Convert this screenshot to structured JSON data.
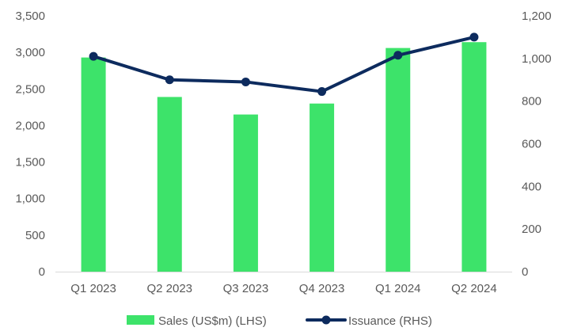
{
  "chart_data": {
    "type": "bar",
    "categories": [
      "Q1 2023",
      "Q2 2023",
      "Q3 2023",
      "Q4 2023",
      "Q1 2024",
      "Q2 2024"
    ],
    "series": [
      {
        "name": "Sales (US$m) (LHS)",
        "type": "bar",
        "axis": "left",
        "color": "#3de36a",
        "values": [
          2930,
          2390,
          2150,
          2300,
          3060,
          3140
        ]
      },
      {
        "name": "Issuance (RHS)",
        "type": "line",
        "axis": "right",
        "color": "#0d2b5e",
        "values": [
          1010,
          900,
          890,
          845,
          1015,
          1100
        ]
      }
    ],
    "y_left": {
      "min": 0,
      "max": 3500,
      "ticks": [
        0,
        500,
        1000,
        1500,
        2000,
        2500,
        3000,
        3500
      ],
      "tick_labels": [
        "0",
        "500",
        "1,000",
        "1,500",
        "2,000",
        "2,500",
        "3,000",
        "3,500"
      ]
    },
    "y_right": {
      "min": 0,
      "max": 1200,
      "ticks": [
        0,
        200,
        400,
        600,
        800,
        1000,
        1200
      ],
      "tick_labels": [
        "0",
        "200",
        "400",
        "600",
        "800",
        "1,000",
        "1,200"
      ]
    },
    "title": "",
    "xlabel": "",
    "ylabel": "",
    "grid": false,
    "legend": "bottom"
  }
}
